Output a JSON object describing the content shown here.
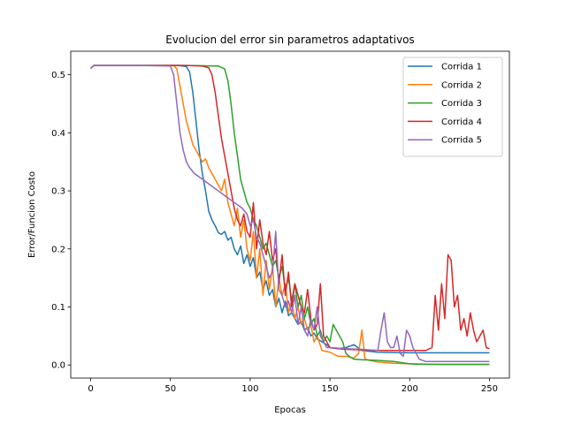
{
  "chart_data": {
    "type": "line",
    "title": "Evolucion del error sin parametros adaptativos",
    "xlabel": "Epocas",
    "ylabel": "Error/Funcion Costo",
    "xlim": [
      -12.5,
      262.5
    ],
    "ylim": [
      -0.0225,
      0.5405
    ],
    "xticks": [
      0,
      50,
      100,
      150,
      200,
      250
    ],
    "yticks": [
      0.0,
      0.1,
      0.2,
      0.3,
      0.4,
      0.5
    ],
    "ytick_labels": [
      "0.0",
      "0.1",
      "0.2",
      "0.3",
      "0.4",
      "0.5"
    ],
    "grid": false,
    "legend_position": "top-right",
    "series": [
      {
        "name": "Corrida 1",
        "color": "#1f77b4",
        "points": [
          [
            0,
            0.511
          ],
          [
            2,
            0.516
          ],
          [
            10,
            0.516
          ],
          [
            30,
            0.516
          ],
          [
            55,
            0.516
          ],
          [
            60,
            0.514
          ],
          [
            62,
            0.505
          ],
          [
            64,
            0.47
          ],
          [
            66,
            0.42
          ],
          [
            68,
            0.37
          ],
          [
            70,
            0.33
          ],
          [
            72,
            0.3
          ],
          [
            74,
            0.265
          ],
          [
            76,
            0.25
          ],
          [
            78,
            0.24
          ],
          [
            80,
            0.228
          ],
          [
            82,
            0.225
          ],
          [
            84,
            0.23
          ],
          [
            86,
            0.215
          ],
          [
            88,
            0.22
          ],
          [
            90,
            0.2
          ],
          [
            92,
            0.19
          ],
          [
            94,
            0.205
          ],
          [
            96,
            0.175
          ],
          [
            98,
            0.19
          ],
          [
            100,
            0.17
          ],
          [
            102,
            0.185
          ],
          [
            104,
            0.15
          ],
          [
            106,
            0.16
          ],
          [
            108,
            0.13
          ],
          [
            110,
            0.145
          ],
          [
            112,
            0.12
          ],
          [
            114,
            0.13
          ],
          [
            116,
            0.1
          ],
          [
            118,
            0.115
          ],
          [
            120,
            0.09
          ],
          [
            122,
            0.11
          ],
          [
            124,
            0.085
          ],
          [
            126,
            0.09
          ],
          [
            128,
            0.08
          ],
          [
            130,
            0.07
          ],
          [
            132,
            0.075
          ],
          [
            134,
            0.06
          ],
          [
            136,
            0.065
          ],
          [
            138,
            0.05
          ],
          [
            140,
            0.055
          ],
          [
            142,
            0.045
          ],
          [
            145,
            0.04
          ],
          [
            148,
            0.035
          ],
          [
            150,
            0.03
          ],
          [
            155,
            0.028
          ],
          [
            160,
            0.03
          ],
          [
            165,
            0.035
          ],
          [
            170,
            0.025
          ],
          [
            180,
            0.022
          ],
          [
            200,
            0.021
          ],
          [
            220,
            0.021
          ],
          [
            250,
            0.021
          ]
        ]
      },
      {
        "name": "Corrida 2",
        "color": "#ff7f0e",
        "points": [
          [
            0,
            0.511
          ],
          [
            2,
            0.516
          ],
          [
            10,
            0.516
          ],
          [
            30,
            0.516
          ],
          [
            52,
            0.516
          ],
          [
            54,
            0.51
          ],
          [
            56,
            0.48
          ],
          [
            58,
            0.45
          ],
          [
            60,
            0.42
          ],
          [
            62,
            0.4
          ],
          [
            64,
            0.38
          ],
          [
            66,
            0.37
          ],
          [
            68,
            0.36
          ],
          [
            70,
            0.35
          ],
          [
            72,
            0.355
          ],
          [
            74,
            0.34
          ],
          [
            76,
            0.33
          ],
          [
            78,
            0.32
          ],
          [
            80,
            0.31
          ],
          [
            82,
            0.3
          ],
          [
            84,
            0.32
          ],
          [
            86,
            0.28
          ],
          [
            88,
            0.26
          ],
          [
            90,
            0.24
          ],
          [
            92,
            0.27
          ],
          [
            94,
            0.22
          ],
          [
            96,
            0.25
          ],
          [
            98,
            0.2
          ],
          [
            100,
            0.18
          ],
          [
            102,
            0.23
          ],
          [
            104,
            0.15
          ],
          [
            106,
            0.2
          ],
          [
            108,
            0.12
          ],
          [
            110,
            0.18
          ],
          [
            112,
            0.13
          ],
          [
            114,
            0.17
          ],
          [
            116,
            0.1
          ],
          [
            118,
            0.15
          ],
          [
            120,
            0.12
          ],
          [
            122,
            0.14
          ],
          [
            124,
            0.09
          ],
          [
            126,
            0.11
          ],
          [
            128,
            0.08
          ],
          [
            130,
            0.1
          ],
          [
            132,
            0.07
          ],
          [
            134,
            0.08
          ],
          [
            136,
            0.06
          ],
          [
            138,
            0.07
          ],
          [
            140,
            0.04
          ],
          [
            142,
            0.05
          ],
          [
            145,
            0.025
          ],
          [
            150,
            0.022
          ],
          [
            155,
            0.015
          ],
          [
            160,
            0.015
          ],
          [
            165,
            0.012
          ],
          [
            168,
            0.02
          ],
          [
            170,
            0.06
          ],
          [
            172,
            0.01
          ],
          [
            175,
            0.008
          ],
          [
            180,
            0.005
          ],
          [
            190,
            0.003
          ],
          [
            200,
            0.002
          ],
          [
            220,
            0.001
          ],
          [
            250,
            0.001
          ]
        ]
      },
      {
        "name": "Corrida 3",
        "color": "#2ca02c",
        "points": [
          [
            0,
            0.511
          ],
          [
            2,
            0.516
          ],
          [
            10,
            0.516
          ],
          [
            30,
            0.516
          ],
          [
            60,
            0.516
          ],
          [
            80,
            0.515
          ],
          [
            84,
            0.51
          ],
          [
            86,
            0.49
          ],
          [
            88,
            0.45
          ],
          [
            90,
            0.4
          ],
          [
            92,
            0.36
          ],
          [
            94,
            0.32
          ],
          [
            96,
            0.3
          ],
          [
            98,
            0.28
          ],
          [
            100,
            0.27
          ],
          [
            102,
            0.25
          ],
          [
            104,
            0.24
          ],
          [
            106,
            0.22
          ],
          [
            108,
            0.2
          ],
          [
            110,
            0.21
          ],
          [
            112,
            0.19
          ],
          [
            114,
            0.17
          ],
          [
            116,
            0.18
          ],
          [
            118,
            0.15
          ],
          [
            120,
            0.17
          ],
          [
            122,
            0.13
          ],
          [
            124,
            0.15
          ],
          [
            126,
            0.11
          ],
          [
            128,
            0.14
          ],
          [
            130,
            0.1
          ],
          [
            132,
            0.12
          ],
          [
            134,
            0.08
          ],
          [
            136,
            0.1
          ],
          [
            138,
            0.07
          ],
          [
            140,
            0.08
          ],
          [
            142,
            0.05
          ],
          [
            144,
            0.06
          ],
          [
            146,
            0.04
          ],
          [
            148,
            0.05
          ],
          [
            150,
            0.04
          ],
          [
            152,
            0.07
          ],
          [
            154,
            0.06
          ],
          [
            156,
            0.05
          ],
          [
            158,
            0.04
          ],
          [
            160,
            0.02
          ],
          [
            162,
            0.015
          ],
          [
            165,
            0.01
          ],
          [
            170,
            0.009
          ],
          [
            180,
            0.008
          ],
          [
            190,
            0.006
          ],
          [
            200,
            0.002
          ],
          [
            210,
            0.001
          ],
          [
            250,
            0.001
          ]
        ]
      },
      {
        "name": "Corrida 4",
        "color": "#d62728",
        "points": [
          [
            0,
            0.511
          ],
          [
            2,
            0.516
          ],
          [
            10,
            0.516
          ],
          [
            30,
            0.516
          ],
          [
            60,
            0.516
          ],
          [
            70,
            0.515
          ],
          [
            74,
            0.512
          ],
          [
            76,
            0.5
          ],
          [
            78,
            0.47
          ],
          [
            80,
            0.43
          ],
          [
            82,
            0.39
          ],
          [
            84,
            0.36
          ],
          [
            86,
            0.33
          ],
          [
            88,
            0.3
          ],
          [
            90,
            0.27
          ],
          [
            92,
            0.25
          ],
          [
            94,
            0.24
          ],
          [
            96,
            0.26
          ],
          [
            98,
            0.23
          ],
          [
            100,
            0.22
          ],
          [
            102,
            0.28
          ],
          [
            104,
            0.2
          ],
          [
            106,
            0.25
          ],
          [
            108,
            0.21
          ],
          [
            110,
            0.19
          ],
          [
            112,
            0.23
          ],
          [
            114,
            0.18
          ],
          [
            116,
            0.2
          ],
          [
            118,
            0.14
          ],
          [
            120,
            0.19
          ],
          [
            122,
            0.12
          ],
          [
            124,
            0.16
          ],
          [
            126,
            0.1
          ],
          [
            128,
            0.14
          ],
          [
            130,
            0.12
          ],
          [
            132,
            0.1
          ],
          [
            134,
            0.09
          ],
          [
            136,
            0.13
          ],
          [
            138,
            0.08
          ],
          [
            140,
            0.06
          ],
          [
            142,
            0.07
          ],
          [
            144,
            0.14
          ],
          [
            146,
            0.05
          ],
          [
            148,
            0.04
          ],
          [
            150,
            0.03
          ],
          [
            155,
            0.028
          ],
          [
            160,
            0.027
          ],
          [
            170,
            0.026
          ],
          [
            180,
            0.025
          ],
          [
            190,
            0.025
          ],
          [
            200,
            0.025
          ],
          [
            210,
            0.025
          ],
          [
            214,
            0.03
          ],
          [
            216,
            0.12
          ],
          [
            218,
            0.06
          ],
          [
            220,
            0.14
          ],
          [
            222,
            0.08
          ],
          [
            224,
            0.19
          ],
          [
            226,
            0.18
          ],
          [
            228,
            0.1
          ],
          [
            230,
            0.12
          ],
          [
            232,
            0.06
          ],
          [
            234,
            0.08
          ],
          [
            236,
            0.05
          ],
          [
            238,
            0.09
          ],
          [
            240,
            0.06
          ],
          [
            242,
            0.04
          ],
          [
            244,
            0.05
          ],
          [
            246,
            0.06
          ],
          [
            248,
            0.03
          ],
          [
            250,
            0.028
          ]
        ]
      },
      {
        "name": "Corrida 5",
        "color": "#9467bd",
        "points": [
          [
            0,
            0.511
          ],
          [
            2,
            0.516
          ],
          [
            10,
            0.516
          ],
          [
            30,
            0.516
          ],
          [
            50,
            0.515
          ],
          [
            52,
            0.5
          ],
          [
            54,
            0.45
          ],
          [
            56,
            0.4
          ],
          [
            58,
            0.37
          ],
          [
            60,
            0.35
          ],
          [
            62,
            0.34
          ],
          [
            65,
            0.33
          ],
          [
            70,
            0.32
          ],
          [
            75,
            0.31
          ],
          [
            80,
            0.3
          ],
          [
            85,
            0.29
          ],
          [
            90,
            0.28
          ],
          [
            95,
            0.27
          ],
          [
            98,
            0.26
          ],
          [
            100,
            0.24
          ],
          [
            102,
            0.25
          ],
          [
            104,
            0.22
          ],
          [
            106,
            0.21
          ],
          [
            108,
            0.19
          ],
          [
            110,
            0.17
          ],
          [
            112,
            0.15
          ],
          [
            114,
            0.16
          ],
          [
            116,
            0.23
          ],
          [
            118,
            0.13
          ],
          [
            120,
            0.12
          ],
          [
            122,
            0.1
          ],
          [
            124,
            0.11
          ],
          [
            126,
            0.09
          ],
          [
            128,
            0.12
          ],
          [
            130,
            0.07
          ],
          [
            132,
            0.1
          ],
          [
            134,
            0.06
          ],
          [
            136,
            0.05
          ],
          [
            138,
            0.08
          ],
          [
            140,
            0.06
          ],
          [
            142,
            0.1
          ],
          [
            144,
            0.05
          ],
          [
            146,
            0.04
          ],
          [
            148,
            0.03
          ],
          [
            150,
            0.03
          ],
          [
            160,
            0.028
          ],
          [
            170,
            0.027
          ],
          [
            180,
            0.025
          ],
          [
            182,
            0.06
          ],
          [
            184,
            0.09
          ],
          [
            186,
            0.04
          ],
          [
            188,
            0.03
          ],
          [
            190,
            0.03
          ],
          [
            192,
            0.05
          ],
          [
            194,
            0.02
          ],
          [
            196,
            0.015
          ],
          [
            198,
            0.06
          ],
          [
            200,
            0.05
          ],
          [
            202,
            0.03
          ],
          [
            204,
            0.02
          ],
          [
            206,
            0.01
          ],
          [
            208,
            0.008
          ],
          [
            210,
            0.006
          ],
          [
            220,
            0.006
          ],
          [
            250,
            0.006
          ]
        ]
      }
    ]
  }
}
